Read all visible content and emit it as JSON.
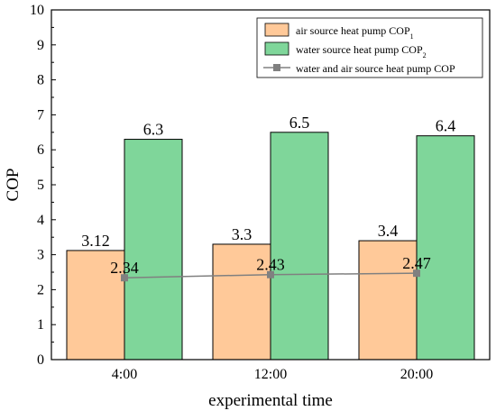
{
  "chart_data": {
    "type": "bar",
    "title": "",
    "xlabel": "experimental time",
    "ylabel": "COP",
    "categories": [
      "4:00",
      "12:00",
      "20:00"
    ],
    "ylim": [
      0,
      10
    ],
    "yticks": [
      "0",
      "1",
      "2",
      "3",
      "4",
      "5",
      "6",
      "7",
      "8",
      "9",
      "10"
    ],
    "grid": false,
    "legend_position": "top-right",
    "series": [
      {
        "name": "air source heat pump COP",
        "name_subscript": "1",
        "kind": "bar",
        "color": "#FFC999",
        "values": [
          3.12,
          3.3,
          3.4
        ],
        "labels": [
          "3.12",
          "3.3",
          "3.4"
        ]
      },
      {
        "name": "water source heat pump COP",
        "name_subscript": "2",
        "kind": "bar",
        "color": "#7FD69A",
        "values": [
          6.3,
          6.5,
          6.4
        ],
        "labels": [
          "6.3",
          "6.5",
          "6.4"
        ]
      },
      {
        "name": "water and air source heat pump COP",
        "name_subscript": "",
        "kind": "line",
        "color": "#808080",
        "marker": "square",
        "values": [
          2.34,
          2.43,
          2.47
        ],
        "labels": [
          "2.34",
          "2.43",
          "2.47"
        ]
      }
    ]
  }
}
